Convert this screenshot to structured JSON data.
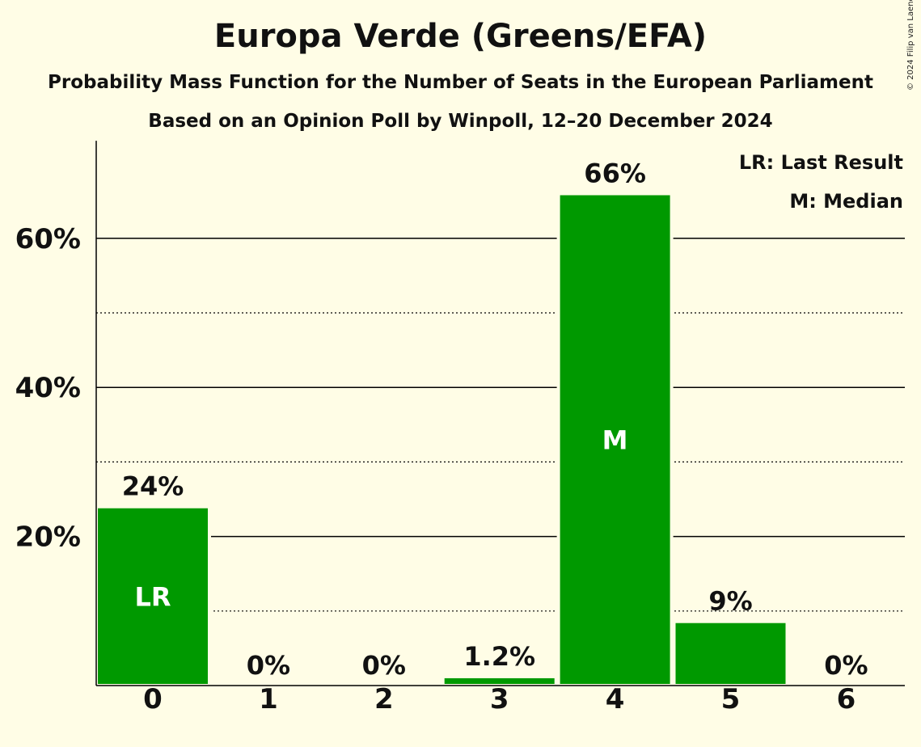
{
  "chart_data": {
    "type": "bar",
    "title": "Europa Verde (Greens/EFA)",
    "subtitle": "Probability Mass Function for the Number of Seats in the European Parliament",
    "subtitle2": "Based on an Opinion Poll by Winpoll, 12–20 December 2024",
    "categories": [
      "0",
      "1",
      "2",
      "3",
      "4",
      "5",
      "6"
    ],
    "values": [
      24,
      0,
      0,
      1.2,
      66,
      8.6,
      0
    ],
    "data_labels": [
      "24%",
      "0%",
      "0%",
      "1.2%",
      "66%",
      "9%",
      "0%"
    ],
    "bar_markers": [
      "LR",
      "",
      "",
      "",
      "M",
      "",
      ""
    ],
    "yticks": [
      {
        "value": 20,
        "label": "20%"
      },
      {
        "value": 40,
        "label": "40%"
      },
      {
        "value": 60,
        "label": "60%"
      }
    ],
    "minor_gridlines": [
      10,
      30,
      50
    ],
    "ylim": [
      0,
      72
    ],
    "legend": [
      "LR: Last Result",
      "M: Median"
    ],
    "legend_position": "top-right",
    "bar_color": "#009900",
    "copyright": "© 2024 Filip van Laenen"
  }
}
